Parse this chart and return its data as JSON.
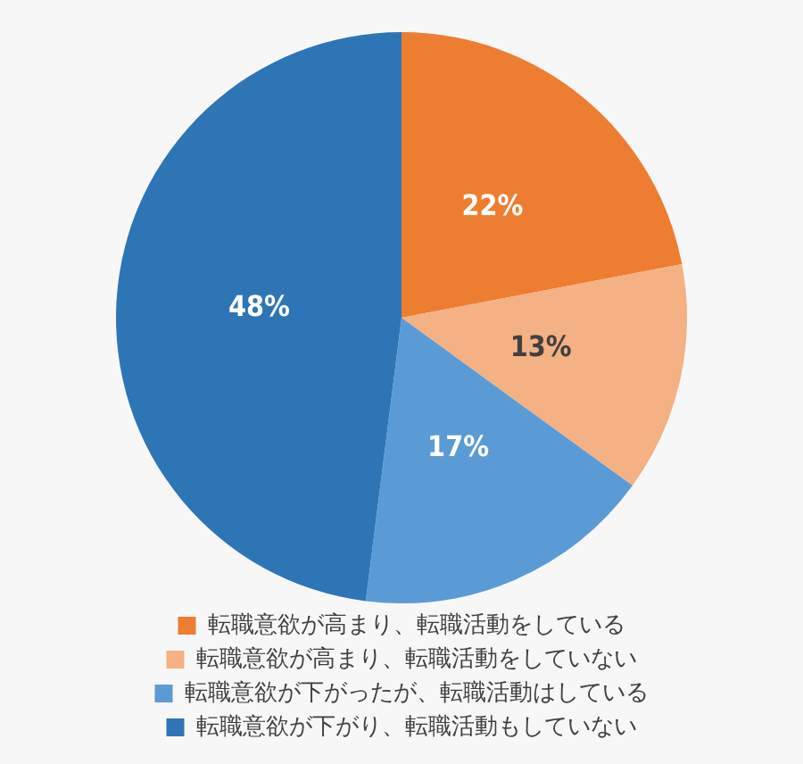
{
  "chart_data": {
    "type": "pie",
    "categories": [
      "転職意欲が高まり、転職活動をしている",
      "転職意欲が高まり、転職活動をしていない",
      "転職意欲が下がったが、転職活動はしている",
      "転職意欲が下がり、転職活動もしていない"
    ],
    "values": [
      22,
      13,
      17,
      48
    ],
    "colors": [
      "#ed7d31",
      "#f4b183",
      "#5b9bd5",
      "#2e75b6"
    ],
    "value_labels": [
      "22%",
      "13%",
      "17%",
      "48%"
    ],
    "legend": "bottom"
  }
}
